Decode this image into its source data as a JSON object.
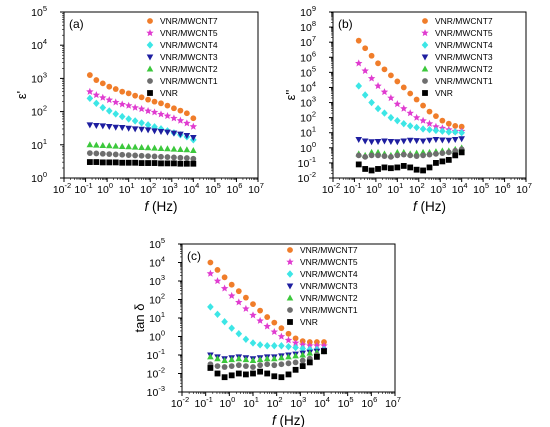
{
  "chart_data": [
    {
      "type": "scatter",
      "panel_label": "(a)",
      "ylabel": "ε'",
      "xlabel_italic": "f",
      "xlabel_unit": "(Hz)",
      "xscale": "log",
      "yscale": "log",
      "xlim_exp": [
        -2,
        7
      ],
      "ylim_exp": [
        0,
        5
      ],
      "legend_position": "top-right",
      "series": [
        {
          "name": "VNR/MWCNT7",
          "marker": "circle",
          "color": "#F07D2A",
          "log_y": [
            3.1,
            2.95,
            2.85,
            2.75,
            2.68,
            2.6,
            2.55,
            2.48,
            2.43,
            2.36,
            2.3,
            2.25,
            2.18,
            2.1,
            2.03,
            1.95,
            1.8
          ]
        },
        {
          "name": "VNR/MWCNT5",
          "marker": "star",
          "color": "#E03CD0",
          "log_y": [
            2.6,
            2.5,
            2.42,
            2.35,
            2.28,
            2.22,
            2.18,
            2.12,
            2.08,
            2.02,
            1.98,
            1.92,
            1.87,
            1.8,
            1.73,
            1.65,
            1.55
          ]
        },
        {
          "name": "VNR/MWCNT4",
          "marker": "diamond",
          "color": "#3CE6E6",
          "log_y": [
            2.4,
            2.25,
            2.12,
            2.02,
            1.93,
            1.85,
            1.78,
            1.72,
            1.66,
            1.6,
            1.54,
            1.48,
            1.42,
            1.36,
            1.3,
            1.24,
            1.15
          ]
        },
        {
          "name": "VNR/MWCNT3",
          "marker": "triangle-down",
          "color": "#1E1EA0",
          "log_y": [
            1.6,
            1.58,
            1.57,
            1.55,
            1.53,
            1.52,
            1.5,
            1.48,
            1.47,
            1.45,
            1.42,
            1.4,
            1.38,
            1.35,
            1.32,
            1.28,
            1.22
          ]
        },
        {
          "name": "VNR/MWCNT2",
          "marker": "triangle-up",
          "color": "#3CC83C",
          "log_y": [
            1.0,
            0.99,
            0.98,
            0.97,
            0.96,
            0.95,
            0.94,
            0.93,
            0.92,
            0.91,
            0.9,
            0.89,
            0.88,
            0.87,
            0.86,
            0.85,
            0.83
          ]
        },
        {
          "name": "VNR/MWCNT1",
          "marker": "circle",
          "color": "#6E6E6E",
          "log_y": [
            0.75,
            0.74,
            0.73,
            0.72,
            0.71,
            0.7,
            0.69,
            0.68,
            0.67,
            0.66,
            0.65,
            0.64,
            0.63,
            0.62,
            0.61,
            0.6,
            0.58
          ]
        },
        {
          "name": "VNR",
          "marker": "square",
          "color": "#000000",
          "log_y": [
            0.48,
            0.48,
            0.47,
            0.47,
            0.47,
            0.46,
            0.46,
            0.46,
            0.45,
            0.45,
            0.45,
            0.44,
            0.44,
            0.44,
            0.43,
            0.43,
            0.43
          ]
        }
      ],
      "log_x": [
        -0.8,
        -0.5,
        -0.2,
        0.1,
        0.4,
        0.7,
        1.0,
        1.3,
        1.6,
        1.9,
        2.2,
        2.5,
        2.8,
        3.1,
        3.4,
        3.7,
        4.0
      ]
    },
    {
      "type": "scatter",
      "panel_label": "(b)",
      "ylabel": "ε''",
      "xlabel_italic": "f",
      "xlabel_unit": "(Hz)",
      "xscale": "log",
      "yscale": "log",
      "xlim_exp": [
        -2,
        7
      ],
      "ylim_exp": [
        -2,
        9
      ],
      "legend_position": "top-right",
      "series": [
        {
          "name": "VNR/MWCNT7",
          "marker": "circle",
          "color": "#F07D2A",
          "log_y": [
            7.1,
            6.6,
            6.1,
            5.6,
            5.2,
            4.8,
            4.4,
            4.0,
            3.6,
            3.2,
            2.8,
            2.4,
            2.1,
            1.8,
            1.6,
            1.45,
            1.4
          ]
        },
        {
          "name": "VNR/MWCNT5",
          "marker": "star",
          "color": "#E03CD0",
          "log_y": [
            5.6,
            5.1,
            4.6,
            4.1,
            3.7,
            3.3,
            2.9,
            2.6,
            2.3,
            2.0,
            1.8,
            1.6,
            1.4,
            1.3,
            1.2,
            1.1,
            1.1
          ]
        },
        {
          "name": "VNR/MWCNT4",
          "marker": "diamond",
          "color": "#3CE6E6",
          "log_y": [
            4.1,
            3.5,
            3.0,
            2.6,
            2.3,
            2.0,
            1.8,
            1.6,
            1.45,
            1.35,
            1.25,
            1.2,
            1.15,
            1.1,
            1.05,
            1.05,
            1.0
          ]
        },
        {
          "name": "VNR/MWCNT3",
          "marker": "triangle-down",
          "color": "#1E1EA0",
          "log_y": [
            0.55,
            0.45,
            0.4,
            0.42,
            0.45,
            0.42,
            0.4,
            0.45,
            0.5,
            0.48,
            0.45,
            0.5,
            0.55,
            0.52,
            0.5,
            0.55,
            0.6
          ]
        },
        {
          "name": "VNR/MWCNT2",
          "marker": "triangle-up",
          "color": "#3CC83C",
          "log_y": [
            -0.4,
            -0.5,
            -0.3,
            -0.3,
            -0.4,
            -0.5,
            -0.3,
            -0.3,
            -0.4,
            -0.35,
            -0.3,
            -0.3,
            -0.25,
            -0.2,
            -0.2,
            -0.1,
            0.0
          ]
        },
        {
          "name": "VNR/MWCNT1",
          "marker": "circle",
          "color": "#6E6E6E",
          "log_y": [
            -0.5,
            -0.6,
            -0.5,
            -0.5,
            -0.55,
            -0.6,
            -0.5,
            -0.45,
            -0.5,
            -0.55,
            -0.5,
            -0.45,
            -0.4,
            -0.35,
            -0.3,
            -0.2,
            -0.1
          ]
        },
        {
          "name": "VNR",
          "marker": "square",
          "color": "#000000",
          "log_y": [
            -1.1,
            -1.4,
            -1.5,
            -1.4,
            -1.3,
            -1.35,
            -1.3,
            -1.2,
            -1.3,
            -1.45,
            -1.5,
            -1.3,
            -1.0,
            -0.9,
            -0.8,
            -0.5,
            -0.3
          ]
        }
      ],
      "log_x": [
        -0.8,
        -0.5,
        -0.2,
        0.1,
        0.4,
        0.7,
        1.0,
        1.3,
        1.6,
        1.9,
        2.2,
        2.5,
        2.8,
        3.1,
        3.4,
        3.7,
        4.0
      ]
    },
    {
      "type": "scatter",
      "panel_label": "(c)",
      "ylabel": "tan δ",
      "xlabel_italic": "f",
      "xlabel_unit": "(Hz)",
      "xscale": "log",
      "yscale": "log",
      "xlim_exp": [
        -2,
        7
      ],
      "ylim_exp": [
        -3,
        5
      ],
      "legend_position": "top-right",
      "series": [
        {
          "name": "VNR/MWCNT7",
          "marker": "circle",
          "color": "#F07D2A",
          "log_y": [
            4.0,
            3.6,
            3.2,
            2.8,
            2.45,
            2.1,
            1.75,
            1.4,
            1.05,
            0.75,
            0.45,
            0.15,
            -0.1,
            -0.25,
            -0.3,
            -0.3,
            -0.3
          ]
        },
        {
          "name": "VNR/MWCNT5",
          "marker": "star",
          "color": "#E03CD0",
          "log_y": [
            3.4,
            3.0,
            2.6,
            2.2,
            1.85,
            1.5,
            1.15,
            0.85,
            0.55,
            0.25,
            0.0,
            -0.2,
            -0.35,
            -0.45,
            -0.5,
            -0.5,
            -0.5
          ]
        },
        {
          "name": "VNR/MWCNT4",
          "marker": "diamond",
          "color": "#3CE6E6",
          "log_y": [
            1.6,
            1.2,
            0.8,
            0.45,
            0.15,
            -0.15,
            -0.35,
            -0.45,
            -0.5,
            -0.5,
            -0.5,
            -0.55,
            -0.6,
            -0.65,
            -0.7,
            -0.7,
            -0.7
          ]
        },
        {
          "name": "VNR/MWCNT3",
          "marker": "triangle-down",
          "color": "#1E1EA0",
          "log_y": [
            -1.0,
            -1.1,
            -1.2,
            -1.15,
            -1.1,
            -1.15,
            -1.2,
            -1.15,
            -1.1,
            -1.1,
            -1.05,
            -1.0,
            -0.95,
            -0.9,
            -0.85,
            -0.8,
            -0.75
          ]
        },
        {
          "name": "VNR/MWCNT2",
          "marker": "triangle-up",
          "color": "#3CC83C",
          "log_y": [
            -1.1,
            -1.2,
            -1.3,
            -1.25,
            -1.2,
            -1.25,
            -1.3,
            -1.25,
            -1.2,
            -1.2,
            -1.15,
            -1.1,
            -1.05,
            -1.0,
            -0.9,
            -0.85,
            -0.8
          ]
        },
        {
          "name": "VNR/MWCNT1",
          "marker": "circle",
          "color": "#6E6E6E",
          "log_y": [
            -1.5,
            -1.6,
            -1.65,
            -1.6,
            -1.55,
            -1.6,
            -1.65,
            -1.55,
            -1.5,
            -1.55,
            -1.5,
            -1.45,
            -1.4,
            -1.3,
            -1.2,
            -1.0,
            -0.8
          ]
        },
        {
          "name": "VNR",
          "marker": "square",
          "color": "#000000",
          "log_y": [
            -1.7,
            -2.0,
            -2.2,
            -2.1,
            -2.0,
            -2.05,
            -2.0,
            -1.9,
            -2.0,
            -2.15,
            -2.2,
            -2.05,
            -1.8,
            -1.6,
            -1.4,
            -1.1,
            -0.8
          ]
        }
      ],
      "log_x": [
        -0.8,
        -0.5,
        -0.2,
        0.1,
        0.4,
        0.7,
        1.0,
        1.3,
        1.6,
        1.9,
        2.2,
        2.5,
        2.8,
        3.1,
        3.4,
        3.7,
        4.0
      ]
    }
  ]
}
